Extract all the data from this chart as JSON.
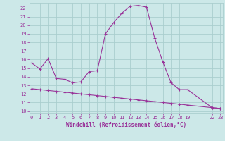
{
  "xlabel": "Windchill (Refroidissement éolien,°C)",
  "bg_color": "#cce8e8",
  "grid_color": "#aacece",
  "line_color": "#993399",
  "curve1_x": [
    0,
    1,
    2,
    3,
    4,
    5,
    6,
    7,
    8,
    9,
    10,
    11,
    12,
    13,
    14,
    15,
    16,
    17,
    18,
    19,
    22,
    23
  ],
  "curve1_y": [
    15.6,
    14.9,
    16.1,
    13.8,
    13.7,
    13.3,
    13.4,
    14.6,
    14.7,
    19.0,
    20.3,
    21.4,
    22.2,
    22.3,
    22.1,
    18.5,
    15.7,
    13.3,
    12.5,
    12.5,
    10.4,
    10.3
  ],
  "curve2_x": [
    0,
    1,
    2,
    3,
    4,
    5,
    6,
    7,
    8,
    9,
    10,
    11,
    12,
    13,
    14,
    15,
    16,
    17,
    18,
    19,
    22,
    23
  ],
  "curve2_y": [
    12.6,
    12.5,
    12.4,
    12.3,
    12.2,
    12.1,
    12.0,
    11.9,
    11.8,
    11.7,
    11.6,
    11.5,
    11.4,
    11.3,
    11.2,
    11.1,
    11.0,
    10.9,
    10.8,
    10.7,
    10.4,
    10.3
  ],
  "xlim": [
    -0.3,
    23.3
  ],
  "ylim": [
    9.8,
    22.6
  ],
  "yticks": [
    10,
    11,
    12,
    13,
    14,
    15,
    16,
    17,
    18,
    19,
    20,
    21,
    22
  ],
  "xticks": [
    0,
    1,
    2,
    3,
    4,
    5,
    6,
    7,
    8,
    9,
    10,
    11,
    12,
    13,
    14,
    15,
    16,
    17,
    18,
    19,
    22,
    23
  ],
  "xlabel_fontsize": 5.5,
  "tick_fontsize": 5.0
}
